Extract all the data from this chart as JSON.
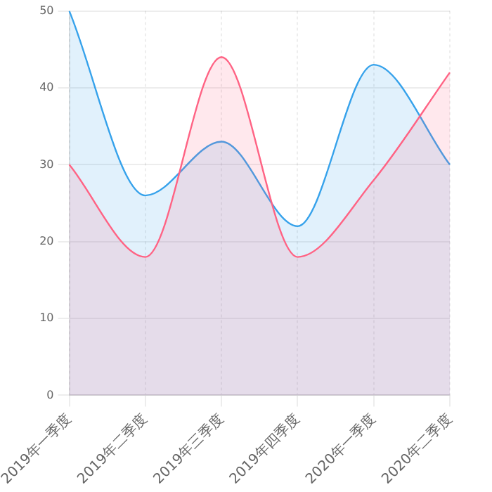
{
  "chart_data": {
    "type": "area",
    "categories": [
      "2019年一季度",
      "2019年二季度",
      "2019年三季度",
      "2019年四季度",
      "2020年一季度",
      "2020年二季度"
    ],
    "series": [
      {
        "color": "#ff6384",
        "values": [
          30,
          18,
          44,
          18,
          28,
          42
        ]
      },
      {
        "color": "#36a2eb",
        "values": [
          50,
          26,
          33,
          22,
          43,
          30
        ]
      }
    ],
    "ylim": [
      0,
      50
    ],
    "yticks": [
      0,
      10,
      20,
      30,
      40,
      50
    ],
    "grid": true,
    "legend": false
  }
}
